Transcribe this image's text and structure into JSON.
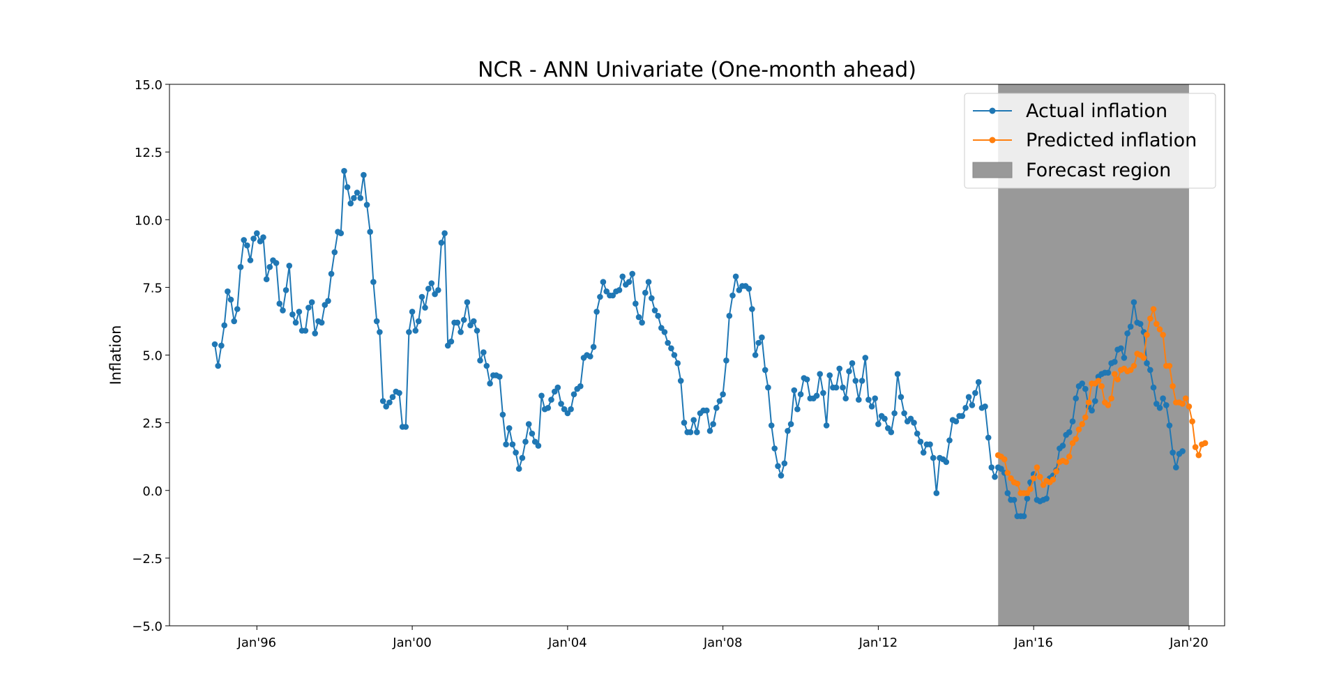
{
  "chart_data": {
    "type": "line",
    "title": "NCR - ANN Univariate (One-month ahead)",
    "xlabel": "",
    "ylabel": "Inflation",
    "ylim": [
      -5.0,
      15.0
    ],
    "xlim": [
      "1993-10-01",
      "2020-12-01"
    ],
    "y_ticks": [
      -5.0,
      -2.5,
      0.0,
      2.5,
      5.0,
      7.5,
      10.0,
      12.5,
      15.0
    ],
    "y_tick_labels": [
      "−5.0",
      "−2.5",
      "0.0",
      "2.5",
      "5.0",
      "7.5",
      "10.0",
      "12.5",
      "15.0"
    ],
    "x_ticks": [
      {
        "date": "1996-01-01",
        "label": "Jan'96"
      },
      {
        "date": "2000-01-01",
        "label": "Jan'00"
      },
      {
        "date": "2004-01-01",
        "label": "Jan'04"
      },
      {
        "date": "2008-01-01",
        "label": "Jan'08"
      },
      {
        "date": "2012-01-01",
        "label": "Jan'12"
      },
      {
        "date": "2016-01-01",
        "label": "Jan'16"
      },
      {
        "date": "2020-01-01",
        "label": "Jan'20"
      }
    ],
    "grid": false,
    "legend_position": "top-right",
    "forecast_region": {
      "start": "2015-02-01",
      "end": "2020-01-01",
      "color": "#999999"
    },
    "series": [
      {
        "name": "Actual inflation",
        "color": "#1f77b4",
        "start": "1994-12-01",
        "values": [
          5.4,
          4.6,
          5.35,
          6.1,
          7.35,
          7.05,
          6.25,
          6.7,
          8.25,
          9.25,
          9.05,
          8.5,
          9.3,
          9.5,
          9.2,
          9.35,
          7.8,
          8.25,
          8.5,
          8.4,
          6.9,
          6.65,
          7.4,
          8.3,
          6.5,
          6.2,
          6.6,
          5.9,
          5.9,
          6.75,
          6.95,
          5.8,
          6.25,
          6.2,
          6.85,
          7.0,
          8.0,
          8.8,
          9.55,
          9.5,
          11.8,
          11.2,
          10.6,
          10.8,
          11.0,
          10.8,
          11.65,
          10.55,
          9.55,
          7.7,
          6.25,
          5.85,
          3.3,
          3.1,
          3.25,
          3.45,
          3.65,
          3.6,
          2.35,
          2.35,
          5.85,
          6.6,
          5.9,
          6.25,
          7.15,
          6.75,
          7.45,
          7.65,
          7.25,
          7.4,
          9.15,
          9.5,
          5.35,
          5.5,
          6.2,
          6.2,
          5.85,
          6.3,
          6.95,
          6.1,
          6.25,
          5.9,
          4.8,
          5.1,
          4.6,
          3.95,
          4.25,
          4.25,
          4.2,
          2.8,
          1.7,
          2.3,
          1.7,
          1.4,
          0.8,
          1.2,
          1.8,
          2.45,
          2.1,
          1.8,
          1.65,
          3.5,
          3.0,
          3.05,
          3.35,
          3.65,
          3.8,
          3.2,
          3.0,
          2.85,
          3.0,
          3.55,
          3.75,
          3.85,
          4.9,
          5.0,
          4.95,
          5.3,
          6.6,
          7.15,
          7.7,
          7.35,
          7.2,
          7.2,
          7.35,
          7.4,
          7.9,
          7.6,
          7.7,
          8.0,
          6.9,
          6.4,
          6.2,
          7.3,
          7.7,
          7.1,
          6.65,
          6.45,
          6.0,
          5.85,
          5.45,
          5.25,
          5.0,
          4.7,
          4.05,
          2.5,
          2.15,
          2.15,
          2.6,
          2.15,
          2.85,
          2.95,
          2.95,
          2.2,
          2.45,
          3.05,
          3.3,
          3.55,
          4.8,
          6.45,
          7.2,
          7.9,
          7.4,
          7.55,
          7.55,
          7.45,
          6.7,
          5.0,
          5.45,
          5.65,
          4.45,
          3.8,
          2.4,
          1.55,
          0.9,
          0.55,
          1.0,
          2.2,
          2.45,
          3.7,
          3.0,
          3.55,
          4.15,
          4.1,
          3.4,
          3.4,
          3.5,
          4.3,
          3.6,
          2.4,
          4.25,
          3.8,
          3.8,
          4.5,
          3.8,
          3.4,
          4.4,
          4.7,
          4.05,
          3.35,
          4.05,
          4.9,
          3.35,
          3.1,
          3.4,
          2.45,
          2.75,
          2.65,
          2.3,
          2.15,
          2.85,
          4.3,
          3.45,
          2.85,
          2.55,
          2.65,
          2.5,
          2.1,
          1.8,
          1.4,
          1.7,
          1.7,
          1.2,
          -0.1,
          1.2,
          1.15,
          1.05,
          1.85,
          2.6,
          2.55,
          2.75,
          2.75,
          3.05,
          3.45,
          3.15,
          3.6,
          4.0,
          3.05,
          3.1,
          1.95,
          0.85,
          0.5,
          0.85,
          0.8,
          0.65,
          -0.1,
          -0.35,
          -0.35,
          -0.95,
          -0.95,
          -0.95,
          -0.3,
          0.3,
          0.6,
          -0.35,
          -0.4,
          -0.35,
          -0.3,
          0.45,
          0.55,
          0.75,
          1.55,
          1.65,
          2.05,
          2.15,
          2.55,
          3.4,
          3.85,
          3.95,
          3.75,
          3.1,
          2.95,
          3.3,
          4.2,
          4.3,
          4.35,
          4.35,
          4.7,
          4.75,
          5.2,
          5.25,
          4.9,
          5.8,
          6.05,
          6.95,
          6.2,
          6.15,
          5.85,
          4.7,
          4.45,
          3.8,
          3.2,
          3.05,
          3.4,
          3.15,
          2.4,
          1.4,
          0.85,
          1.35,
          1.45
        ]
      },
      {
        "name": "Predicted inflation",
        "color": "#ff7f0e",
        "start": "2015-02-01",
        "values": [
          1.3,
          1.25,
          1.15,
          0.65,
          0.45,
          0.3,
          0.25,
          -0.1,
          -0.1,
          -0.1,
          0.05,
          0.45,
          0.85,
          0.5,
          0.2,
          0.35,
          0.3,
          0.4,
          0.7,
          1.05,
          1.1,
          1.05,
          1.25,
          1.75,
          1.9,
          2.25,
          2.45,
          2.7,
          3.25,
          3.95,
          3.95,
          4.05,
          3.85,
          3.25,
          3.15,
          3.4,
          4.3,
          4.1,
          4.45,
          4.5,
          4.4,
          4.45,
          4.6,
          5.05,
          5.0,
          4.9,
          5.75,
          6.35,
          6.7,
          6.15,
          5.95,
          5.75,
          4.6,
          4.6,
          3.85,
          3.25,
          3.25,
          3.2,
          3.4,
          3.1,
          2.55,
          1.6,
          1.3,
          1.7,
          1.75
        ]
      }
    ]
  }
}
